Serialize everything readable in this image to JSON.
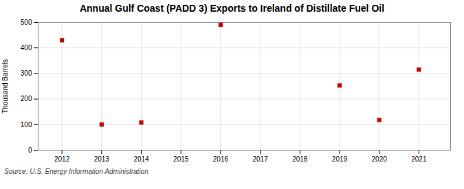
{
  "chart_data": {
    "type": "scatter",
    "title": "Annual Gulf Coast (PADD 3) Exports to Ireland of Distillate Fuel Oil",
    "ylabel": "Thousand Barrels",
    "source": "Source: U.S. Energy Information Administration",
    "x": [
      2012,
      2013,
      2014,
      2016,
      2019,
      2020,
      2021
    ],
    "values": [
      430,
      100,
      108,
      490,
      253,
      118,
      315
    ],
    "color": "#cc0000",
    "marker": "square",
    "xlim": [
      2011.4,
      2021.8
    ],
    "ylim": [
      0,
      500
    ],
    "xticks": [
      2012,
      2013,
      2014,
      2015,
      2016,
      2017,
      2018,
      2019,
      2020,
      2021
    ],
    "yticks": [
      0,
      100,
      200,
      300,
      400,
      500
    ],
    "grid": true
  }
}
